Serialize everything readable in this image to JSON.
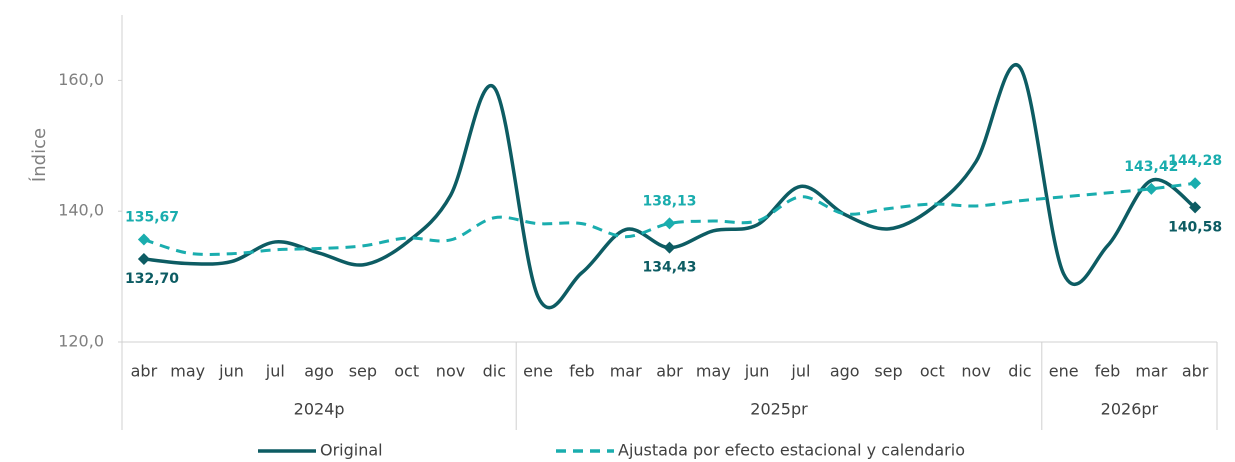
{
  "chart_data": {
    "type": "line",
    "y_label": "Índice",
    "categories": [
      "abr",
      "may",
      "jun",
      "jul",
      "ago",
      "sep",
      "oct",
      "nov",
      "dic",
      "ene",
      "feb",
      "mar",
      "abr",
      "may",
      "jun",
      "jul",
      "ago",
      "sep",
      "oct",
      "nov",
      "dic",
      "ene",
      "feb",
      "mar",
      "abr"
    ],
    "groups": [
      {
        "label": "2024p",
        "count": 9
      },
      {
        "label": "2025pr",
        "count": 12
      },
      {
        "label": "2026pr",
        "count": 4
      }
    ],
    "ylim": [
      120,
      170
    ],
    "yticks": [
      {
        "value": 120,
        "label": "120,0"
      },
      {
        "value": 140,
        "label": "140,0"
      },
      {
        "value": 160,
        "label": "160,0"
      }
    ],
    "grid": false,
    "legend": "bottom",
    "series": [
      {
        "name": "Original",
        "color": "#0d5c63",
        "dash": false,
        "values": [
          132.7,
          132.0,
          132.3,
          135.3,
          133.6,
          131.8,
          135.2,
          142.4,
          158.9,
          126.9,
          130.6,
          137.2,
          134.43,
          137.0,
          137.9,
          143.8,
          139.5,
          137.3,
          140.5,
          147.6,
          162.0,
          130.4,
          134.7,
          144.7,
          140.58
        ],
        "value_labels": [
          "132,70",
          null,
          null,
          null,
          null,
          null,
          null,
          null,
          null,
          null,
          null,
          null,
          "134,43",
          null,
          null,
          null,
          null,
          null,
          null,
          null,
          null,
          null,
          null,
          null,
          "140,58"
        ]
      },
      {
        "name": "Ajustada por efecto estacional y calendario",
        "color": "#1aadae",
        "dash": true,
        "values": [
          135.67,
          133.6,
          133.5,
          134.1,
          134.3,
          134.7,
          135.9,
          135.6,
          139.0,
          138.1,
          138.1,
          136.1,
          138.13,
          138.5,
          138.5,
          142.2,
          139.6,
          140.4,
          141.1,
          140.8,
          141.6,
          142.2,
          142.8,
          143.42,
          144.28
        ],
        "value_labels": [
          "135,67",
          null,
          null,
          null,
          null,
          null,
          null,
          null,
          null,
          null,
          null,
          null,
          "138,13",
          null,
          null,
          null,
          null,
          null,
          null,
          null,
          null,
          null,
          null,
          "143,42",
          "144,28"
        ]
      }
    ]
  }
}
